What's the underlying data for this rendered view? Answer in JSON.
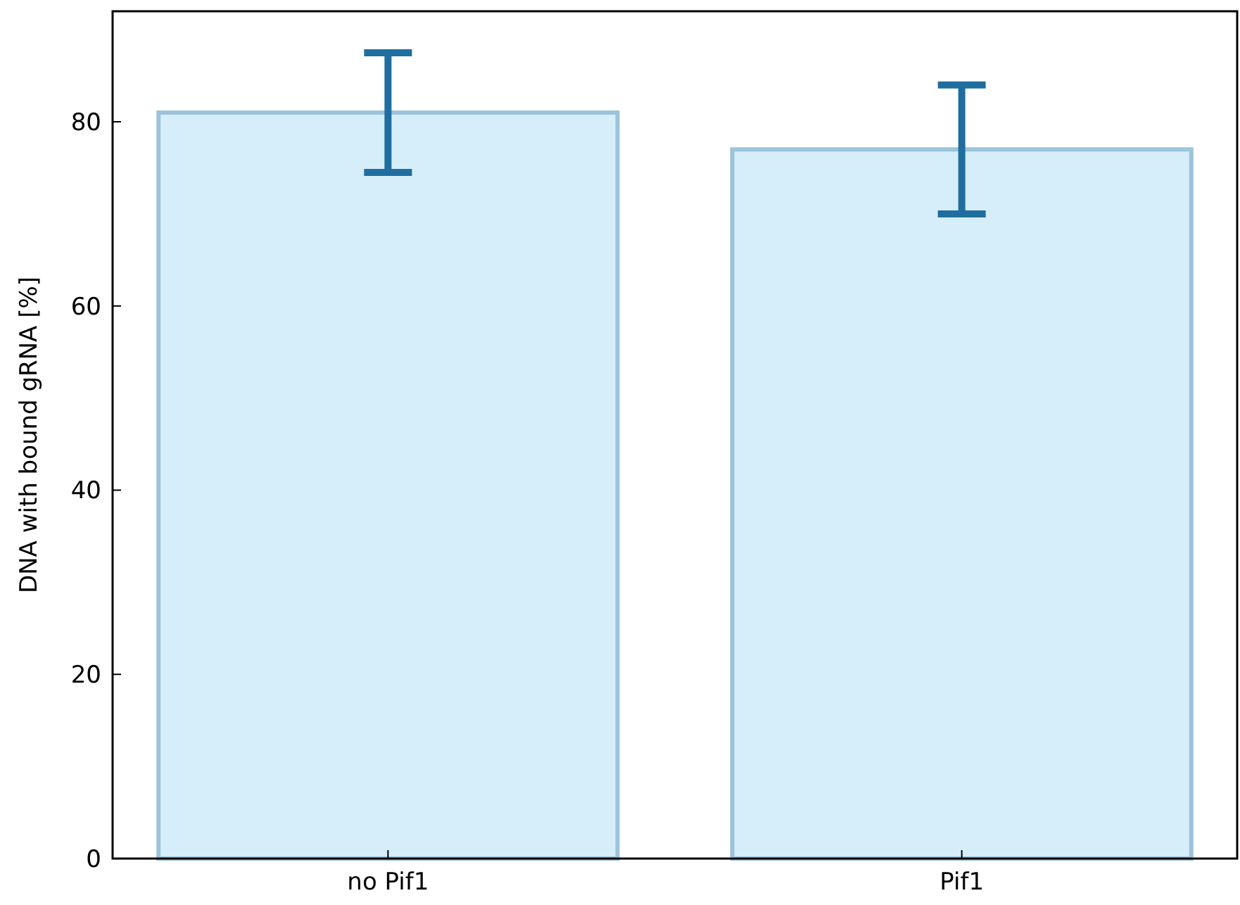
{
  "chart_data": {
    "type": "bar",
    "ylabel": "DNA with bound gRNA [%]",
    "categories": [
      "no Pif1",
      "Pif1"
    ],
    "values": [
      81,
      77
    ],
    "color": "#d6eefa",
    "errors": [
      [
        74.5,
        87.5
      ],
      [
        70,
        84
      ]
    ],
    "ylim": [
      0,
      92
    ],
    "yticks": [
      0,
      20,
      40,
      60,
      80
    ],
    "grid": false
  }
}
